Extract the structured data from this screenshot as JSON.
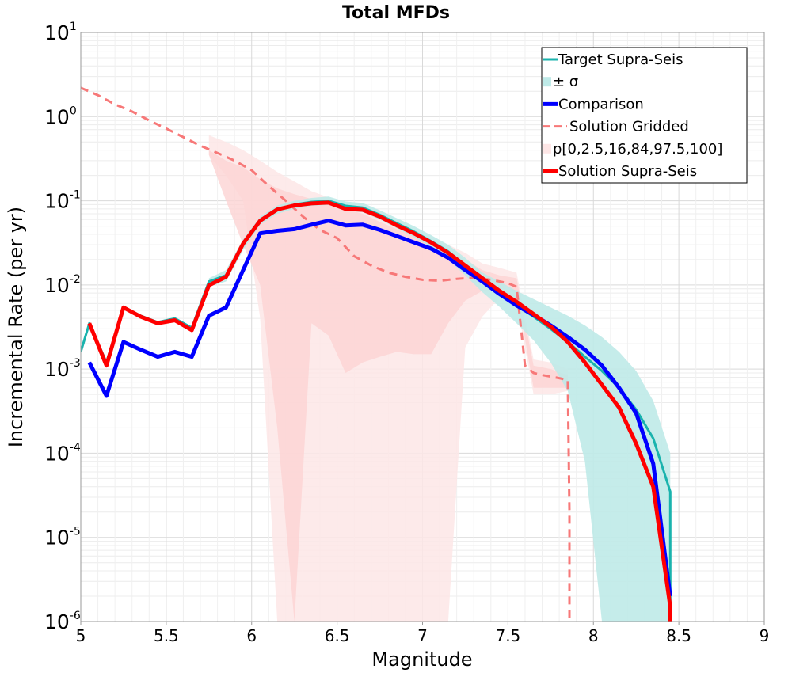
{
  "chart_data": {
    "type": "line",
    "title": "Total MFDs",
    "xlabel": "Magnitude",
    "ylabel": "Incremental Rate (per yr)",
    "xlim": [
      5,
      9
    ],
    "ylim": [
      1e-06,
      10
    ],
    "yscale": "log",
    "xticks": [
      "5",
      "5.5",
      "6",
      "6.5",
      "7",
      "7.5",
      "8",
      "8.5",
      "9"
    ],
    "yticks": [
      {
        "base": "10",
        "exp": "1"
      },
      {
        "base": "10",
        "exp": "0"
      },
      {
        "base": "10",
        "exp": "-1"
      },
      {
        "base": "10",
        "exp": "-2"
      },
      {
        "base": "10",
        "exp": "-3"
      },
      {
        "base": "10",
        "exp": "-4"
      },
      {
        "base": "10",
        "exp": "-5"
      },
      {
        "base": "10",
        "exp": "-6"
      }
    ],
    "grid": true,
    "legend_position": "top-right",
    "legend": [
      {
        "label": "Target Supra-Seis",
        "color": "#1ab3ad",
        "kind": "line",
        "width": 3
      },
      {
        "label": "± σ",
        "color": "#bfeae8",
        "kind": "band"
      },
      {
        "label": "Comparison",
        "color": "#0000ff",
        "kind": "line",
        "width": 5
      },
      {
        "label": "Solution Gridded",
        "color": "#f77878",
        "kind": "dash",
        "width": 3
      },
      {
        "label": "p[0,2.5,16,84,97.5,100]",
        "color": "#fde6e6",
        "kind": "band"
      },
      {
        "label": "Solution Supra-Seis",
        "color": "#ff0000",
        "kind": "line",
        "width": 5
      }
    ],
    "colors": {
      "target": "#1ab3ad",
      "sigma_band": "#bfeae8",
      "comparison": "#0000ff",
      "gridded": "#f77878",
      "p_outer": "#fde6e6",
      "p_inner": "#fdd3d3",
      "solution": "#ff0000"
    },
    "series": [
      {
        "name": "Target Supra-Seis",
        "x": [
          5.0,
          5.05,
          5.15,
          5.25,
          5.35,
          5.45,
          5.55,
          5.65,
          5.75,
          5.85,
          5.95,
          6.05,
          6.15,
          6.25,
          6.35,
          6.45,
          6.55,
          6.65,
          6.75,
          6.85,
          6.95,
          7.05,
          7.15,
          7.25,
          7.35,
          7.45,
          7.55,
          7.65,
          7.75,
          7.85,
          7.95,
          8.05,
          8.15,
          8.25,
          8.35,
          8.45,
          8.45
        ],
        "y": [
          0.0016,
          0.0035,
          0.0012,
          0.0055,
          0.0043,
          0.0036,
          0.004,
          0.0031,
          0.011,
          0.013,
          0.03,
          0.058,
          0.078,
          0.09,
          0.097,
          0.1,
          0.087,
          0.083,
          0.068,
          0.054,
          0.043,
          0.033,
          0.025,
          0.017,
          0.011,
          0.0078,
          0.0057,
          0.0042,
          0.003,
          0.0021,
          0.0014,
          0.00095,
          0.0006,
          0.00033,
          0.00015,
          3.5e-05,
          1.2e-06
        ]
      },
      {
        "name": "± σ",
        "x": [
          5.75,
          5.85,
          5.95,
          6.05,
          6.15,
          6.25,
          6.35,
          6.45,
          6.55,
          6.65,
          6.75,
          6.85,
          6.95,
          7.05,
          7.15,
          7.25,
          7.35,
          7.45,
          7.55,
          7.65,
          7.75,
          7.85,
          7.95,
          8.05,
          8.15,
          8.25,
          8.35,
          8.45
        ],
        "upper": [
          0.012,
          0.015,
          0.035,
          0.065,
          0.088,
          0.1,
          0.108,
          0.112,
          0.098,
          0.094,
          0.077,
          0.062,
          0.05,
          0.039,
          0.03,
          0.021,
          0.014,
          0.011,
          0.0085,
          0.0068,
          0.0054,
          0.0043,
          0.0033,
          0.0024,
          0.0016,
          0.00095,
          0.00042,
          0.0001
        ],
        "lower": [
          0.0095,
          0.011,
          0.026,
          0.052,
          0.07,
          0.08,
          0.087,
          0.089,
          0.077,
          0.073,
          0.06,
          0.047,
          0.037,
          0.028,
          0.02,
          0.013,
          0.0082,
          0.0055,
          0.0035,
          0.0022,
          0.0012,
          0.00055,
          8e-05,
          1e-06,
          1e-06,
          1e-06,
          1e-06,
          1e-06
        ]
      },
      {
        "name": "Comparison",
        "x": [
          5.05,
          5.15,
          5.25,
          5.35,
          5.45,
          5.55,
          5.65,
          5.75,
          5.85,
          5.95,
          6.05,
          6.15,
          6.25,
          6.35,
          6.45,
          6.55,
          6.65,
          6.75,
          6.85,
          6.95,
          7.05,
          7.15,
          7.25,
          7.35,
          7.45,
          7.55,
          7.65,
          7.75,
          7.85,
          7.95,
          8.05,
          8.15,
          8.25,
          8.35,
          8.45
        ],
        "y": [
          0.0012,
          0.00048,
          0.0021,
          0.0017,
          0.0014,
          0.0016,
          0.0014,
          0.0043,
          0.0054,
          0.015,
          0.041,
          0.044,
          0.046,
          0.052,
          0.058,
          0.051,
          0.052,
          0.045,
          0.038,
          0.032,
          0.027,
          0.021,
          0.015,
          0.011,
          0.0078,
          0.0057,
          0.0044,
          0.0033,
          0.0024,
          0.0017,
          0.0011,
          0.0006,
          0.0003,
          7.5e-05,
          2e-06
        ]
      },
      {
        "name": "Solution Gridded",
        "x": [
          5.0,
          5.1,
          5.2,
          5.3,
          5.4,
          5.5,
          5.6,
          5.7,
          5.8,
          5.9,
          6.0,
          6.1,
          6.2,
          6.3,
          6.4,
          6.5,
          6.6,
          6.7,
          6.8,
          6.9,
          7.0,
          7.1,
          7.2,
          7.3,
          7.4,
          7.5,
          7.55,
          7.6,
          7.65,
          7.7,
          7.8,
          7.85,
          7.86,
          7.86
        ],
        "y": [
          2.2,
          1.8,
          1.4,
          1.15,
          0.9,
          0.72,
          0.57,
          0.45,
          0.37,
          0.3,
          0.23,
          0.15,
          0.1,
          0.065,
          0.045,
          0.036,
          0.022,
          0.017,
          0.014,
          0.0125,
          0.0115,
          0.0112,
          0.0118,
          0.0122,
          0.0115,
          0.0105,
          0.0095,
          0.0011,
          0.0009,
          0.00085,
          0.00078,
          0.00074,
          2e-05,
          1e-06
        ]
      },
      {
        "name": "p[0,2.5,16,84,97.5,100]",
        "x": [
          5.75,
          5.85,
          5.95,
          6.05,
          6.15,
          6.25,
          6.35,
          6.45,
          6.55,
          6.65,
          6.75,
          6.85,
          6.95,
          7.05,
          7.15,
          7.25,
          7.35,
          7.45,
          7.55,
          7.65,
          7.75,
          7.85
        ],
        "outer_upper": [
          0.6,
          0.5,
          0.4,
          0.3,
          0.22,
          0.17,
          0.13,
          0.11,
          0.088,
          0.075,
          0.06,
          0.05,
          0.042,
          0.036,
          0.03,
          0.024,
          0.018,
          0.016,
          0.014,
          0.0013,
          0.0012,
          0.001
        ],
        "outer_lower": [
          0.35,
          0.2,
          0.1,
          0.004,
          1e-06,
          1e-06,
          1e-06,
          1e-06,
          1e-06,
          1e-06,
          1e-06,
          1e-06,
          1e-06,
          1e-06,
          1e-06,
          0.0018,
          0.0042,
          0.007,
          0.0063,
          0.0005,
          0.0005,
          0.00055
        ],
        "inner_upper": [
          0.4,
          0.3,
          0.25,
          0.18,
          0.14,
          0.12,
          0.105,
          0.1,
          0.08,
          0.07,
          0.056,
          0.046,
          0.038,
          0.032,
          0.026,
          0.02,
          0.015,
          0.013,
          0.012,
          0.0011,
          0.001,
          0.00085
        ],
        "inner_lower": [
          0.35,
          0.1,
          0.03,
          0.01,
          0.0002,
          1e-06,
          0.0035,
          0.0025,
          0.0009,
          0.0012,
          0.0014,
          0.0016,
          0.0015,
          0.0015,
          0.0035,
          0.0065,
          0.0085,
          0.009,
          0.0085,
          0.0006,
          0.0006,
          0.0006
        ]
      },
      {
        "name": "Solution Supra-Seis",
        "x": [
          5.05,
          5.15,
          5.25,
          5.35,
          5.45,
          5.55,
          5.65,
          5.75,
          5.85,
          5.95,
          6.05,
          6.15,
          6.25,
          6.35,
          6.45,
          6.55,
          6.65,
          6.75,
          6.85,
          6.95,
          7.05,
          7.15,
          7.25,
          7.35,
          7.45,
          7.55,
          7.65,
          7.75,
          7.85,
          7.95,
          8.05,
          8.15,
          8.25,
          8.35,
          8.45,
          8.45
        ],
        "y": [
          0.0035,
          0.0011,
          0.0054,
          0.0042,
          0.0035,
          0.0038,
          0.0029,
          0.0099,
          0.0125,
          0.031,
          0.058,
          0.079,
          0.088,
          0.093,
          0.095,
          0.08,
          0.078,
          0.065,
          0.051,
          0.041,
          0.032,
          0.024,
          0.017,
          0.012,
          0.0085,
          0.0063,
          0.0045,
          0.0032,
          0.0021,
          0.0012,
          0.00065,
          0.00035,
          0.00013,
          4e-05,
          1.5e-06,
          1e-06
        ]
      }
    ]
  }
}
